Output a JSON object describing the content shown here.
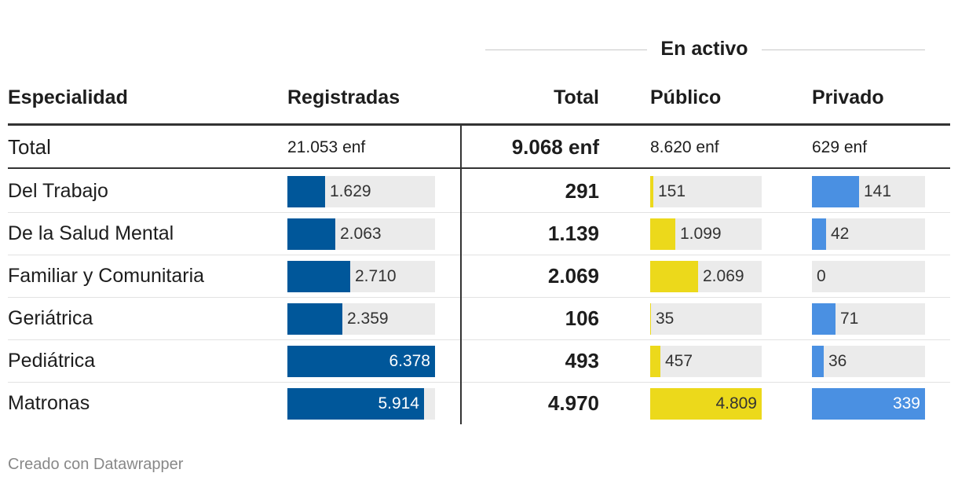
{
  "group_header": "En activo",
  "columns": {
    "especialidad": "Especialidad",
    "registradas": "Registradas",
    "total": "Total",
    "publico": "Público",
    "privado": "Privado"
  },
  "total_row": {
    "label": "Total",
    "registradas": "21.053 enf",
    "total": "9.068 enf",
    "publico": "8.620 enf",
    "privado": "629 enf"
  },
  "chart_data": {
    "type": "table",
    "title": "",
    "columns": [
      "Especialidad",
      "Registradas",
      "Total",
      "Público",
      "Privado"
    ],
    "column_group": {
      "label": "En activo",
      "spans": [
        "Total",
        "Público",
        "Privado"
      ]
    },
    "scales": {
      "registradas_max": 6378,
      "publico_max": 4809,
      "privado_max": 339
    },
    "colors": {
      "registradas": "#00579a",
      "publico": "#ecd91b",
      "privado": "#4a90e2",
      "track": "#ebebeb"
    },
    "rows": [
      {
        "especialidad": "Del Trabajo",
        "registradas": 1629,
        "registradas_label": "1.629",
        "total": "291",
        "publico": 151,
        "publico_label": "151",
        "privado": 141,
        "privado_label": "141"
      },
      {
        "especialidad": "De la Salud Mental",
        "registradas": 2063,
        "registradas_label": "2.063",
        "total": "1.139",
        "publico": 1099,
        "publico_label": "1.099",
        "privado": 42,
        "privado_label": "42"
      },
      {
        "especialidad": "Familiar y Comunitaria",
        "registradas": 2710,
        "registradas_label": "2.710",
        "total": "2.069",
        "publico": 2069,
        "publico_label": "2.069",
        "privado": 0,
        "privado_label": "0"
      },
      {
        "especialidad": "Geriátrica",
        "registradas": 2359,
        "registradas_label": "2.359",
        "total": "106",
        "publico": 35,
        "publico_label": "35",
        "privado": 71,
        "privado_label": "71"
      },
      {
        "especialidad": "Pediátrica",
        "registradas": 6378,
        "registradas_label": "6.378",
        "total": "493",
        "publico": 457,
        "publico_label": "457",
        "privado": 36,
        "privado_label": "36"
      },
      {
        "especialidad": "Matronas",
        "registradas": 5914,
        "registradas_label": "5.914",
        "total": "4.970",
        "publico": 4809,
        "publico_label": "4.809",
        "privado": 339,
        "privado_label": "339"
      }
    ]
  },
  "footer": "Creado con Datawrapper"
}
